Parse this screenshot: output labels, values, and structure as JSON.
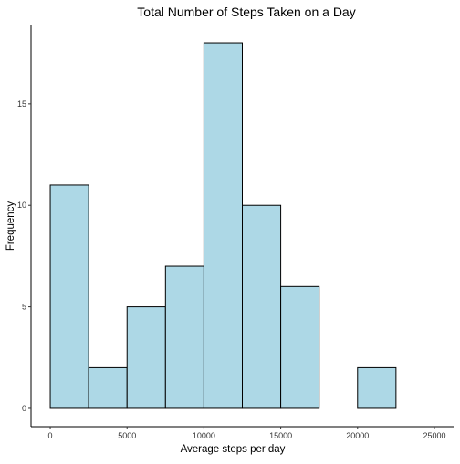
{
  "chart_data": {
    "type": "bar",
    "title": "Total Number of Steps Taken on a Day",
    "xlabel": "Average steps per day",
    "ylabel": "Frequency",
    "bins": [
      {
        "x0": 0,
        "x1": 2500,
        "count": 11
      },
      {
        "x0": 2500,
        "x1": 5000,
        "count": 2
      },
      {
        "x0": 5000,
        "x1": 7500,
        "count": 5
      },
      {
        "x0": 7500,
        "x1": 10000,
        "count": 7
      },
      {
        "x0": 10000,
        "x1": 12500,
        "count": 18
      },
      {
        "x0": 12500,
        "x1": 15000,
        "count": 10
      },
      {
        "x0": 15000,
        "x1": 17500,
        "count": 6
      },
      {
        "x0": 17500,
        "x1": 20000,
        "count": 0
      },
      {
        "x0": 20000,
        "x1": 22500,
        "count": 2
      },
      {
        "x0": 22500,
        "x1": 25000,
        "count": 0
      }
    ],
    "xticks": [
      "0",
      "5000",
      "10000",
      "15000",
      "20000",
      "25000"
    ],
    "yticks": [
      "0",
      "5",
      "10",
      "15"
    ],
    "xlim": [
      -1250,
      26250
    ],
    "ylim": [
      -0.9,
      18.9
    ],
    "grid": false,
    "colors": {
      "fill": "#add8e6",
      "outline": "#000000"
    }
  }
}
